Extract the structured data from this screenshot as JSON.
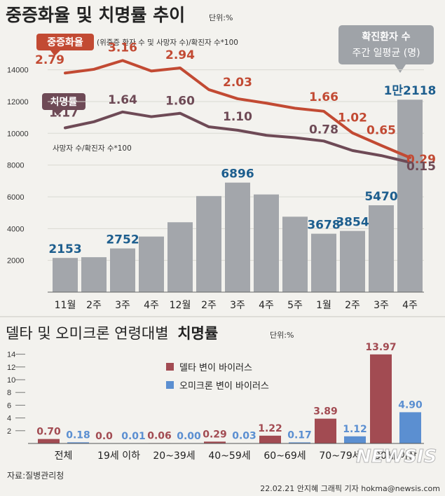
{
  "header": {
    "title": "중증화율 및 치명률 추이",
    "unit": "단위:%"
  },
  "legend_top": {
    "severe_label": "중증화율",
    "severe_formula": "(위중증 환자 수 및 사망자 수)/확진자 수*100",
    "fatality_label": "치명률",
    "fatality_formula": "사망자 수/확진자 수*100",
    "cases_line1": "확진환자 수",
    "cases_line2": "주간 일평균 (명)"
  },
  "bottom_header": {
    "title_part1": "델타 및 오미크론 연령대별",
    "title_part2": "치명률",
    "unit": "단위:%"
  },
  "legend_bottom": {
    "delta": "델타 변이 바이러스",
    "omicron": "오미크론 변이 바이러스"
  },
  "footer": {
    "source": "자료:질병관리청",
    "credit": "22.02.21 안지혜 그래픽 기자 hokma@newsis.com",
    "logo": "NEWSIS"
  },
  "colors": {
    "bar_gray": "#a3a6ab",
    "severe_red": "#c24a33",
    "fatality_dark": "#6e4a56",
    "count_blue": "#1d5e8e",
    "delta_bar": "#a24b52",
    "omicron_bar": "#5b8fd1"
  },
  "chart_data": [
    {
      "type": "bar+line",
      "title": "중증화율 및 치명률 추이",
      "categories": [
        "11월",
        "2주",
        "3주",
        "4주",
        "12월",
        "2주",
        "3주",
        "4주",
        "5주",
        "1월",
        "2주",
        "3주",
        "4주"
      ],
      "bar_ylim": [
        0,
        15500
      ],
      "bar_yticks": [
        2000,
        4000,
        6000,
        8000,
        10000,
        12000,
        14000
      ],
      "bars": {
        "name": "확진환자 수 주간 일평균 (명)",
        "values": [
          2153,
          2200,
          2752,
          3500,
          4400,
          6050,
          6896,
          6150,
          4750,
          3678,
          3854,
          5470,
          12118
        ],
        "labels": [
          "2153",
          "",
          "2752",
          "",
          "",
          "",
          "6896",
          "",
          "",
          "3678",
          "3854",
          "5470",
          "1만2118"
        ]
      },
      "series": [
        {
          "name": "중증화율",
          "values": [
            2.79,
            2.9,
            3.16,
            2.85,
            2.94,
            2.3,
            2.03,
            1.9,
            1.75,
            1.66,
            1.02,
            0.65,
            0.29
          ],
          "labels": [
            "2.79",
            "",
            "3.16",
            "",
            "2.94",
            "",
            "2.03",
            "",
            "",
            "1.66",
            "1.02",
            "0.65",
            "0.29"
          ]
        },
        {
          "name": "치명률",
          "values": [
            1.17,
            1.35,
            1.64,
            1.5,
            1.6,
            1.2,
            1.1,
            0.95,
            0.88,
            0.78,
            0.5,
            0.35,
            0.15
          ],
          "labels": [
            "1.17",
            "",
            "1.64",
            "",
            "1.60",
            "",
            "1.10",
            "",
            "",
            "0.78",
            "",
            "",
            "0.15"
          ]
        }
      ]
    },
    {
      "type": "bar",
      "title": "델타 및 오미크론 연령대별 치명률",
      "categories": [
        "전체",
        "19세 이하",
        "20~39세",
        "40~59세",
        "60~69세",
        "70~79세",
        "80세 이상"
      ],
      "ylim": [
        0,
        15
      ],
      "yticks": [
        2,
        4,
        6,
        8,
        10,
        12,
        14
      ],
      "series": [
        {
          "name": "델타 변이 바이러스",
          "values": [
            0.7,
            0.0,
            0.06,
            0.29,
            1.22,
            3.89,
            13.97
          ],
          "labels": [
            "0.70",
            "0.0",
            "0.06",
            "0.29",
            "1.22",
            "3.89",
            "13.97"
          ]
        },
        {
          "name": "오미크론 변이 바이러스",
          "values": [
            0.18,
            0.01,
            0.0,
            0.03,
            0.17,
            1.12,
            4.9
          ],
          "labels": [
            "0.18",
            "0.01",
            "0.00",
            "0.03",
            "0.17",
            "1.12",
            "4.90"
          ]
        }
      ]
    }
  ]
}
